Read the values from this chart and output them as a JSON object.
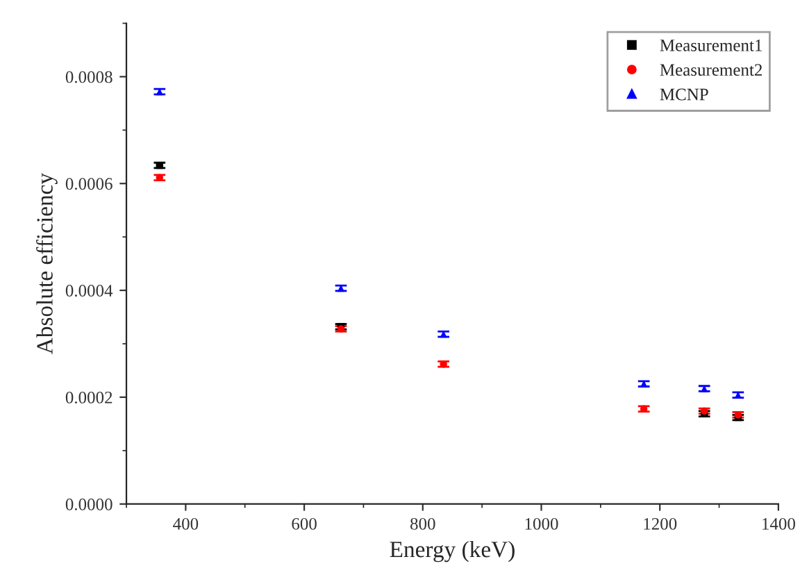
{
  "chart_data": {
    "type": "scatter",
    "xlabel": "Energy (keV)",
    "ylabel": "Absolute efficiency",
    "x": [
      356,
      662,
      835,
      1173,
      1275,
      1332
    ],
    "series": [
      {
        "name": "Measurement1",
        "color": "#000000",
        "marker": "square",
        "values": [
          0.000634,
          0.000332,
          null,
          null,
          0.000169,
          0.000162
        ],
        "errors": [
          5e-06,
          5e-06,
          null,
          null,
          5e-06,
          5e-06
        ]
      },
      {
        "name": "Measurement2",
        "color": "#ff0000",
        "marker": "circle",
        "values": [
          0.000611,
          0.000328,
          0.000262,
          0.000178,
          0.000174,
          0.000167
        ],
        "errors": [
          5e-06,
          5e-06,
          5e-06,
          5e-06,
          5e-06,
          5e-06
        ]
      },
      {
        "name": "MCNP",
        "color": "#0000ff",
        "marker": "triangle",
        "values": [
          0.000772,
          0.000404,
          0.000318,
          0.000225,
          0.000216,
          0.000204
        ],
        "errors": [
          5e-06,
          5e-06,
          5e-06,
          5e-06,
          5e-06,
          5e-06
        ]
      }
    ],
    "xlim": [
      300,
      1400
    ],
    "xticks": [
      400,
      600,
      800,
      1000,
      1200,
      1400
    ],
    "ylim": [
      0,
      0.0009
    ],
    "yticks": [
      {
        "value": 0,
        "label": "0.0000"
      },
      {
        "value": 0.0002,
        "label": "0.0002"
      },
      {
        "value": 0.0004,
        "label": "0.0004"
      },
      {
        "value": 0.0006,
        "label": "0.0006"
      },
      {
        "value": 0.0008,
        "label": "0.0008"
      }
    ],
    "grid": false,
    "legend": "top right"
  }
}
